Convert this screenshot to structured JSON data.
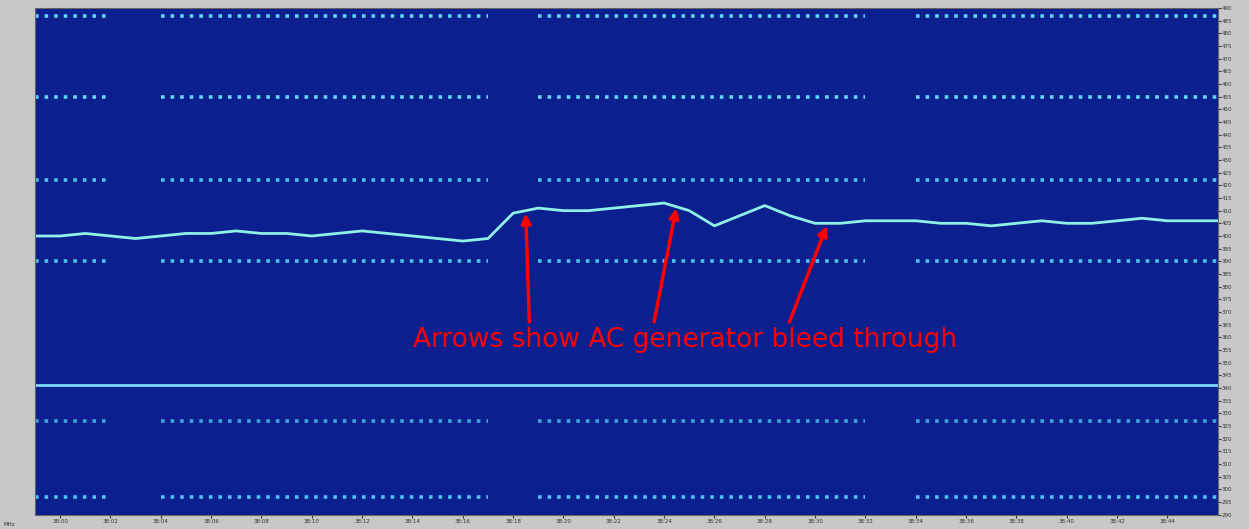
{
  "chart_data": {
    "type": "line",
    "y_label": "MHz",
    "x": [
      -1,
      0,
      1,
      2,
      3,
      4,
      5,
      6,
      7,
      8,
      9,
      10,
      11,
      12,
      13,
      14,
      15,
      16,
      17,
      18,
      19,
      20,
      21,
      22,
      23,
      24,
      25,
      26,
      27,
      28,
      29,
      30,
      31,
      32,
      33,
      34,
      35,
      36,
      37,
      38,
      39,
      40,
      41,
      42,
      43,
      44,
      45,
      46
    ],
    "xlim": [
      -1,
      46
    ],
    "xticks": [
      {
        "value": 0,
        "label": "38:00"
      },
      {
        "value": 2,
        "label": "38:02"
      },
      {
        "value": 4,
        "label": "38:04"
      },
      {
        "value": 6,
        "label": "38:06"
      },
      {
        "value": 8,
        "label": "38:08"
      },
      {
        "value": 10,
        "label": "38:10"
      },
      {
        "value": 12,
        "label": "38:12"
      },
      {
        "value": 14,
        "label": "38:14"
      },
      {
        "value": 16,
        "label": "38:16"
      },
      {
        "value": 18,
        "label": "38:18"
      },
      {
        "value": 20,
        "label": "38:20"
      },
      {
        "value": 22,
        "label": "38:22"
      },
      {
        "value": 24,
        "label": "38:24"
      },
      {
        "value": 26,
        "label": "38:26"
      },
      {
        "value": 28,
        "label": "38:28"
      },
      {
        "value": 30,
        "label": "38:30"
      },
      {
        "value": 32,
        "label": "38:32"
      },
      {
        "value": 34,
        "label": "38:34"
      },
      {
        "value": 36,
        "label": "38:36"
      },
      {
        "value": 38,
        "label": "38:38"
      },
      {
        "value": 40,
        "label": "38:40"
      },
      {
        "value": 42,
        "label": "38:42"
      },
      {
        "value": 44,
        "label": "38:44"
      }
    ],
    "ylim": [
      290,
      490
    ],
    "yticks": [
      290,
      295,
      300,
      305,
      310,
      315,
      320,
      325,
      330,
      335,
      340,
      345,
      350,
      355,
      360,
      365,
      370,
      375,
      380,
      385,
      390,
      395,
      400,
      405,
      410,
      415,
      420,
      425,
      430,
      435,
      440,
      445,
      450,
      455,
      460,
      465,
      470,
      475,
      480,
      485,
      490
    ],
    "grid": false,
    "series": [
      {
        "color": "#5fd6f5",
        "line_style": "dotted",
        "values": [
          487,
          487,
          487,
          487,
          null,
          487,
          487,
          487,
          487,
          487,
          487,
          487,
          487,
          487,
          487,
          487,
          487,
          487,
          487,
          null,
          487,
          487,
          487,
          487,
          487,
          487,
          487,
          487,
          487,
          487,
          487,
          487,
          487,
          487,
          null,
          487,
          487,
          487,
          487,
          487,
          487,
          487,
          487,
          487,
          487,
          487,
          487,
          487
        ]
      },
      {
        "color": "#5fd6f5",
        "line_style": "dotted",
        "values": [
          455,
          455,
          455,
          455,
          null,
          455,
          455,
          455,
          455,
          455,
          455,
          455,
          455,
          455,
          455,
          455,
          455,
          455,
          455,
          null,
          455,
          455,
          455,
          455,
          455,
          455,
          455,
          455,
          455,
          455,
          455,
          455,
          455,
          455,
          null,
          455,
          455,
          455,
          455,
          455,
          455,
          455,
          455,
          455,
          455,
          455,
          455,
          455
        ]
      },
      {
        "color": "#4cc4ec",
        "line_style": "dotted",
        "values": [
          422,
          422,
          422,
          422,
          null,
          422,
          422,
          422,
          422,
          422,
          422,
          422,
          422,
          422,
          422,
          422,
          422,
          422,
          422,
          null,
          422,
          422,
          422,
          422,
          422,
          422,
          422,
          422,
          422,
          422,
          422,
          422,
          422,
          422,
          null,
          422,
          422,
          422,
          422,
          422,
          422,
          422,
          422,
          422,
          422,
          422,
          422,
          422
        ]
      },
      {
        "color": "#8ff0e6",
        "line_style": "solid",
        "values": [
          400,
          400,
          401,
          400,
          399,
          400,
          401,
          401,
          402,
          401,
          401,
          400,
          401,
          402,
          401,
          400,
          399,
          398,
          399,
          409,
          411,
          410,
          410,
          411,
          412,
          413,
          410,
          404,
          408,
          412,
          408,
          405,
          405,
          406,
          406,
          406,
          405,
          405,
          404,
          405,
          406,
          405,
          405,
          406,
          407,
          406,
          406,
          406
        ]
      },
      {
        "color": "#4cc4ec",
        "line_style": "dotted",
        "values": [
          390,
          390,
          390,
          390,
          null,
          390,
          390,
          390,
          390,
          390,
          390,
          390,
          390,
          390,
          390,
          390,
          390,
          390,
          390,
          null,
          390,
          390,
          390,
          390,
          390,
          390,
          390,
          390,
          390,
          390,
          390,
          390,
          390,
          390,
          null,
          390,
          390,
          390,
          390,
          390,
          390,
          390,
          390,
          390,
          390,
          390,
          390,
          390
        ]
      },
      {
        "color": "#7ad8ff",
        "line_style": "solid",
        "values": [
          341,
          341,
          341,
          341,
          341,
          341,
          341,
          341,
          341,
          341,
          341,
          341,
          341,
          341,
          341,
          341,
          341,
          341,
          341,
          341,
          341,
          341,
          341,
          341,
          341,
          341,
          341,
          341,
          341,
          341,
          341,
          341,
          341,
          341,
          341,
          341,
          341,
          341,
          341,
          341,
          341,
          341,
          341,
          341,
          341,
          341,
          341,
          341
        ]
      },
      {
        "color": "#3aa6dc",
        "line_style": "dotted",
        "values": [
          327,
          327,
          327,
          327,
          null,
          327,
          327,
          327,
          327,
          327,
          327,
          327,
          327,
          327,
          327,
          327,
          327,
          327,
          327,
          null,
          327,
          327,
          327,
          327,
          327,
          327,
          327,
          327,
          327,
          327,
          327,
          327,
          327,
          327,
          null,
          327,
          327,
          327,
          327,
          327,
          327,
          327,
          327,
          327,
          327,
          327,
          327,
          327
        ]
      },
      {
        "color": "#4cc4ec",
        "line_style": "dotted",
        "values": [
          297,
          297,
          297,
          297,
          null,
          297,
          297,
          297,
          297,
          297,
          297,
          297,
          297,
          297,
          297,
          297,
          297,
          297,
          297,
          null,
          297,
          297,
          297,
          297,
          297,
          297,
          297,
          297,
          297,
          297,
          297,
          297,
          297,
          297,
          null,
          297,
          297,
          297,
          297,
          297,
          297,
          297,
          297,
          297,
          297,
          297,
          297,
          297
        ]
      }
    ],
    "annotation": {
      "text": "Arrows show AC generator bleed through",
      "color": "#ff0000",
      "points": [
        [
          18.5,
          410
        ],
        [
          24.5,
          412
        ],
        [
          30.5,
          405
        ]
      ]
    }
  }
}
